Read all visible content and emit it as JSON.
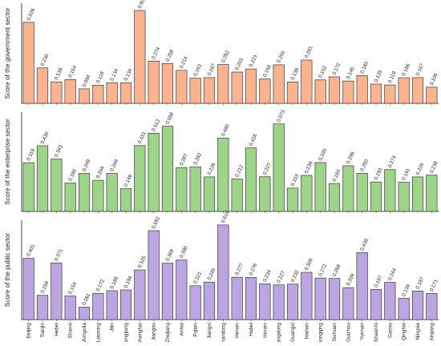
{
  "chart_data": [
    {
      "type": "bar",
      "ylabel": "Score of the government sector",
      "ylim": [
        0,
        0.65
      ],
      "grid": false,
      "categories": [
        "Beijing",
        "Tianjin",
        "Hebei",
        "Shanxi",
        "Inner Mongolia",
        "Liaoning",
        "Jilin",
        "Heilongjiang",
        "Shanghai",
        "Jiangsu",
        "Zhejiang",
        "Anhui",
        "Fujian",
        "Jiangxi",
        "Shandong",
        "Henan",
        "Hubei",
        "Hunan",
        "Guangdong",
        "Guangxi",
        "Hainan",
        "Chongqing",
        "Sichuan",
        "Guizhou",
        "Yunnan",
        "ShaanXi",
        "Gansu",
        "Qinghai",
        "Ningxia",
        "Xinjiang"
      ],
      "values": [
        0.526,
        0.23,
        0.139,
        0.154,
        0.094,
        0.118,
        0.134,
        0.134,
        0.603,
        0.274,
        0.258,
        0.214,
        0.163,
        0.167,
        0.252,
        0.203,
        0.223,
        0.158,
        0.25,
        0.139,
        0.281,
        0.152,
        0.172,
        0.145,
        0.18,
        0.125,
        0.119,
        0.166,
        0.167,
        0.105
      ],
      "labels": [
        "0.526",
        "0.230",
        "0.139",
        "0.154",
        "0.094",
        "0.118",
        "0.134",
        "0.134",
        "0.603",
        "0.274",
        "0.258",
        "0.214",
        "0.163",
        "0.167",
        "0.252",
        "0.203",
        "0.223",
        "0.158",
        "0.250",
        "0.139",
        "0.281",
        "0.152",
        "0.172",
        "0.145",
        "0.180",
        "0.125",
        "0.119",
        "0.166",
        "0.167",
        "0.105"
      ],
      "color": "#f9b48f"
    },
    {
      "type": "bar",
      "ylabel": "Score of the enterprise sector",
      "ylim": [
        0,
        0.65
      ],
      "grid": false,
      "categories": [
        "Beijing",
        "Tianjin",
        "Hebei",
        "Shanxi",
        "Inner Mongolia",
        "Liaoning",
        "Jilin",
        "Heilongjiang",
        "Shanghai",
        "Jiangsu",
        "Zhejiang",
        "Anhui",
        "Fujian",
        "Jiangxi",
        "Shandong",
        "Henan",
        "Hubei",
        "Hunan",
        "Guangdong",
        "Guangxi",
        "Hainan",
        "Chongqing",
        "Sichuan",
        "Guizhou",
        "Yunnan",
        "ShaanXi",
        "Gansu",
        "Qinghai",
        "Ningxia",
        "Xinjiang"
      ],
      "values": [
        0.319,
        0.43,
        0.343,
        0.186,
        0.249,
        0.204,
        0.249,
        0.149,
        0.431,
        0.512,
        0.558,
        0.287,
        0.292,
        0.226,
        0.48,
        0.212,
        0.416,
        0.227,
        0.573,
        0.153,
        0.236,
        0.32,
        0.183,
        0.299,
        0.25,
        0.193,
        0.274,
        0.191,
        0.226,
        0.238
      ],
      "labels": [
        "0.319",
        "0.430",
        "0.343",
        "0.186",
        "0.249",
        "0.204",
        "0.249",
        "0.149",
        "0.431",
        "0.512",
        "0.558",
        "0.287",
        "0.292",
        "0.226",
        "0.480",
        "0.212",
        "0.416",
        "0.227",
        "0.573",
        "0.153",
        "0.236",
        "0.320",
        "0.183",
        "0.299",
        "0.250",
        "0.193",
        "0.274",
        "0.191",
        "0.226",
        "0.238"
      ],
      "color": "#9ed48a"
    },
    {
      "type": "bar",
      "ylabel": "Score of the public sector",
      "ylim": [
        0,
        0.65
      ],
      "grid": false,
      "categories": [
        "Beijing",
        "Tianjin",
        "Hebei",
        "Shanxi",
        "Inner Mongolia",
        "Liaoning",
        "Jilin",
        "Heilongjiang",
        "Shanghai",
        "Jiangsu",
        "Zhejiang",
        "Anhui",
        "Fujian",
        "Jiangxi",
        "Shandong",
        "Henan",
        "Hubei",
        "Hunan",
        "Guangdong",
        "Guangxi",
        "Hainan",
        "Chongqing",
        "Sichuan",
        "Guizhou",
        "Yunnan",
        "ShaanXi",
        "Gansu",
        "Qinghai",
        "Ningxia",
        "Xinjiang"
      ],
      "values": [
        0.401,
        0.159,
        0.371,
        0.154,
        0.081,
        0.172,
        0.189,
        0.194,
        0.325,
        0.582,
        0.369,
        0.39,
        0.221,
        0.245,
        0.619,
        0.277,
        0.276,
        0.234,
        0.227,
        0.232,
        0.309,
        0.272,
        0.269,
        0.209,
        0.438,
        0.197,
        0.244,
        0.139,
        0.187,
        0.171
      ],
      "labels": [
        "0.401",
        "0.159",
        "0.371",
        "0.154",
        "0.081",
        "0.172",
        "0.189",
        "0.194",
        "0.325",
        "0.582",
        "0.369",
        "0.390",
        "0.221",
        "0.245",
        "0.619",
        "0.277",
        "0.276",
        "0.234",
        "0.227",
        "0.232",
        "0.309",
        "0.272",
        "0.269",
        "0.209",
        "0.438",
        "0.197",
        "0.244",
        "0.139",
        "0.187",
        "0.171"
      ],
      "color": "#bca6e2"
    }
  ],
  "colors": {
    "stroke": "#3a3a3a",
    "axis": "#444444"
  }
}
